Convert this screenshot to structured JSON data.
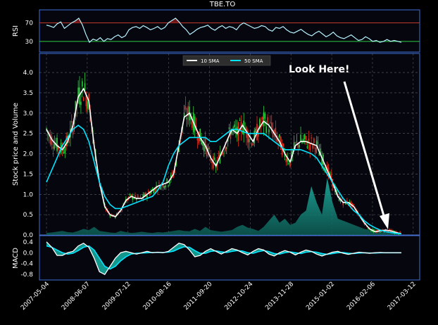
{
  "chart_data": [
    {
      "type": "line",
      "title": "TBE.TO",
      "ylabel": "RSI",
      "yticks": [
        30,
        70
      ],
      "ylim": [
        10,
        95
      ],
      "thresholds": [
        {
          "value": 70,
          "color": "#c0392b"
        },
        {
          "value": 30,
          "color": "#2ecc40"
        }
      ],
      "grid": false,
      "series": [
        {
          "values": [
            65,
            63,
            60,
            68,
            72,
            58,
            64,
            70,
            74,
            80,
            66,
            45,
            28,
            35,
            32,
            38,
            30,
            36,
            34,
            40,
            44,
            38,
            42,
            55,
            60,
            62,
            58,
            64,
            60,
            55,
            58,
            62,
            56,
            60,
            70,
            75,
            80,
            72,
            62,
            55,
            45,
            50,
            56,
            60,
            62,
            65,
            58,
            54,
            60,
            64,
            58,
            62,
            60,
            55,
            65,
            70,
            66,
            62,
            58,
            60,
            64,
            62,
            55,
            52,
            60,
            58,
            62,
            55,
            50,
            48,
            52,
            56,
            50,
            45,
            42,
            48,
            52,
            46,
            40,
            44,
            50,
            42,
            38,
            36,
            40,
            44,
            38,
            32,
            34,
            40,
            36,
            30,
            32,
            28,
            30,
            34,
            30,
            32,
            30,
            28
          ]
        }
      ]
    },
    {
      "type": "line",
      "ylabel": "Stock price and Volume",
      "yticks": [
        "0.0",
        "0.5",
        "1.0",
        "1.5",
        "2.0",
        "2.5",
        "3.0",
        "3.5",
        "4.0"
      ],
      "ylim": [
        0,
        4.4
      ],
      "grid": true,
      "x_tick_labels": [
        "2007-05-04",
        "2008-06-07",
        "2009-07-12",
        "2010-08-16",
        "2011-09-20",
        "2012-10-24",
        "2013-11-28",
        "2015-01-02",
        "2016-02-06",
        "2017-03-12"
      ],
      "legend": {
        "position": "top-center",
        "entries": [
          "10 SMA",
          "50 SMA"
        ],
        "colors": [
          "#ffffff",
          "#00e5ff"
        ]
      },
      "annotation": {
        "text": "Look Here!"
      },
      "series": [
        {
          "name": "10 SMA",
          "values": [
            2.6,
            2.35,
            2.2,
            2.1,
            2.3,
            2.7,
            3.4,
            3.6,
            3.3,
            2.2,
            1.3,
            0.7,
            0.5,
            0.45,
            0.6,
            0.85,
            0.95,
            0.9,
            0.9,
            1.0,
            1.1,
            1.2,
            1.25,
            1.3,
            1.5,
            2.2,
            2.9,
            3.0,
            2.7,
            2.4,
            2.2,
            1.9,
            1.7,
            2.0,
            2.3,
            2.6,
            2.5,
            2.7,
            2.5,
            2.3,
            2.6,
            2.8,
            2.7,
            2.5,
            2.3,
            2.0,
            1.8,
            2.2,
            2.3,
            2.3,
            2.25,
            2.2,
            1.9,
            1.6,
            1.3,
            0.95,
            0.8,
            0.8,
            0.7,
            0.5,
            0.3,
            0.15,
            0.08,
            0.1,
            0.12,
            0.1,
            0.06,
            0.03
          ]
        },
        {
          "name": "50 SMA",
          "values": [
            1.3,
            1.6,
            1.9,
            2.2,
            2.4,
            2.6,
            2.7,
            2.6,
            2.3,
            1.8,
            1.3,
            0.95,
            0.75,
            0.65,
            0.65,
            0.7,
            0.75,
            0.8,
            0.85,
            0.9,
            0.95,
            1.1,
            1.3,
            1.7,
            2.0,
            2.2,
            2.3,
            2.4,
            2.4,
            2.4,
            2.4,
            2.3,
            2.3,
            2.4,
            2.5,
            2.6,
            2.6,
            2.55,
            2.5,
            2.5,
            2.5,
            2.5,
            2.4,
            2.3,
            2.2,
            2.1,
            2.1,
            2.1,
            2.1,
            2.05,
            2.0,
            1.9,
            1.7,
            1.5,
            1.3,
            1.1,
            0.9,
            0.75,
            0.6,
            0.5,
            0.35,
            0.25,
            0.18,
            0.12,
            0.08,
            0.06,
            0.04,
            0.03
          ]
        }
      ],
      "volume": [
        0.05,
        0.06,
        0.08,
        0.1,
        0.07,
        0.06,
        0.1,
        0.15,
        0.12,
        0.2,
        0.1,
        0.08,
        0.06,
        0.05,
        0.1,
        0.07,
        0.05,
        0.06,
        0.08,
        0.06,
        0.05,
        0.07,
        0.06,
        0.08,
        0.1,
        0.12,
        0.1,
        0.09,
        0.15,
        0.1,
        0.2,
        0.12,
        0.1,
        0.08,
        0.1,
        0.12,
        0.2,
        0.25,
        0.18,
        0.15,
        0.1,
        0.2,
        0.35,
        0.5,
        0.3,
        0.4,
        0.25,
        0.3,
        0.5,
        0.6,
        1.2,
        0.8,
        0.5,
        1.4,
        0.8,
        0.4,
        0.35,
        0.3,
        0.25,
        0.2,
        0.15,
        0.12,
        0.1,
        0.08,
        0.06,
        0.05,
        0.05,
        0.04
      ]
    },
    {
      "type": "line",
      "ylabel": "MACD",
      "yticks": [
        "0.4",
        "0.0",
        "-0.4",
        "-0.8"
      ],
      "ylim": [
        -0.95,
        0.55
      ],
      "grid": false,
      "series": [
        {
          "values": [
            0.4,
            0.2,
            -0.1,
            -0.1,
            0.0,
            0.05,
            0.25,
            0.35,
            0.2,
            -0.2,
            -0.7,
            -0.8,
            -0.5,
            -0.2,
            0.0,
            0.05,
            0.0,
            -0.05,
            0.0,
            0.05,
            0.0,
            0.02,
            0.0,
            0.05,
            0.2,
            0.35,
            0.3,
            0.1,
            -0.15,
            -0.1,
            0.05,
            0.15,
            0.05,
            -0.05,
            0.05,
            0.15,
            0.1,
            0.0,
            -0.08,
            0.05,
            0.15,
            0.1,
            -0.05,
            -0.12,
            0.0,
            0.08,
            0.02,
            -0.08,
            0.02,
            0.1,
            0.05,
            -0.05,
            -0.12,
            -0.05,
            0.02,
            0.05,
            -0.02,
            -0.06,
            -0.02,
            0.02,
            0.0,
            -0.02,
            0.0,
            0.01,
            0.0,
            0.0,
            0.0,
            0.0
          ]
        },
        {
          "values": [
            0.25,
            0.2,
            0.1,
            0.0,
            -0.05,
            -0.02,
            0.08,
            0.2,
            0.25,
            0.1,
            -0.2,
            -0.5,
            -0.6,
            -0.5,
            -0.3,
            -0.15,
            -0.05,
            -0.02,
            -0.01,
            0.0,
            0.01,
            0.01,
            0.01,
            0.02,
            0.06,
            0.15,
            0.22,
            0.2,
            0.08,
            -0.02,
            -0.02,
            0.05,
            0.07,
            0.03,
            0.01,
            0.05,
            0.08,
            0.06,
            0.0,
            -0.02,
            0.04,
            0.08,
            0.04,
            -0.03,
            -0.05,
            0.0,
            0.03,
            0.0,
            -0.03,
            0.02,
            0.04,
            0.02,
            -0.03,
            -0.06,
            -0.03,
            0.0,
            0.01,
            -0.02,
            -0.03,
            -0.01,
            0.0,
            -0.01,
            -0.01,
            0.0,
            0.0,
            0.0,
            0.0,
            0.0
          ]
        }
      ]
    }
  ]
}
